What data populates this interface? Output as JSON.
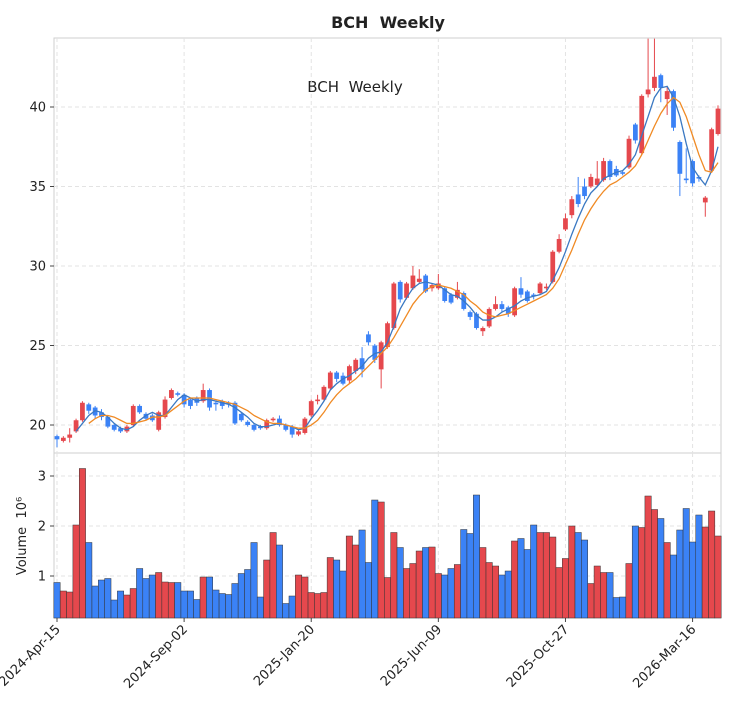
{
  "chart_data": {
    "type": "candlestick",
    "title": "BCH  Weekly",
    "annotation": "BCH  Weekly",
    "x": [
      "2024-Apr-15",
      "2024-Apr-22",
      "2024-Apr-29",
      "2024-May-06",
      "2024-May-13",
      "2024-May-20",
      "2024-May-27",
      "2024-Jun-03",
      "2024-Jun-10",
      "2024-Jun-17",
      "2024-Jun-24",
      "2024-Jul-01",
      "2024-Jul-08",
      "2024-Jul-15",
      "2024-Jul-22",
      "2024-Jul-29",
      "2024-Aug-05",
      "2024-Aug-12",
      "2024-Aug-19",
      "2024-Aug-26",
      "2024-Sep-02",
      "2024-Sep-09",
      "2024-Sep-16",
      "2024-Sep-23",
      "2024-Sep-30",
      "2024-Oct-07",
      "2024-Oct-14",
      "2024-Oct-21",
      "2024-Oct-28",
      "2024-Nov-04",
      "2024-Nov-11",
      "2024-Nov-18",
      "2024-Nov-25",
      "2024-Dec-02",
      "2024-Dec-09",
      "2024-Dec-16",
      "2024-Dec-23",
      "2024-Dec-30",
      "2025-Jan-06",
      "2025-Jan-13",
      "2025-Jan-20",
      "2025-Jan-27",
      "2025-Feb-03",
      "2025-Feb-10",
      "2025-Feb-17",
      "2025-Feb-24",
      "2025-Mar-03",
      "2025-Mar-10",
      "2025-Mar-17",
      "2025-Mar-24",
      "2025-Mar-31",
      "2025-Apr-07",
      "2025-Apr-14",
      "2025-Apr-21",
      "2025-Apr-28",
      "2025-May-05",
      "2025-May-12",
      "2025-May-19",
      "2025-May-26",
      "2025-Jun-02",
      "2025-Jun-09",
      "2025-Jun-16",
      "2025-Jun-23",
      "2025-Jun-30",
      "2025-Jul-07",
      "2025-Jul-14",
      "2025-Jul-21",
      "2025-Jul-28",
      "2025-Aug-04",
      "2025-Aug-11",
      "2025-Aug-18",
      "2025-Aug-25",
      "2025-Sep-01",
      "2025-Sep-08",
      "2025-Sep-15",
      "2025-Sep-22",
      "2025-Sep-29",
      "2025-Oct-06",
      "2025-Oct-13",
      "2025-Oct-20",
      "2025-Oct-27",
      "2025-Nov-03",
      "2025-Nov-10",
      "2025-Nov-17",
      "2025-Nov-24",
      "2025-Dec-01",
      "2025-Dec-08",
      "2025-Dec-15",
      "2025-Dec-22",
      "2025-Dec-29",
      "2026-Jan-05",
      "2026-Jan-12",
      "2026-Jan-19",
      "2026-Jan-26",
      "2026-Feb-02",
      "2026-Feb-09",
      "2026-Feb-16",
      "2026-Feb-23",
      "2026-Mar-02",
      "2026-Mar-09",
      "2026-Mar-16",
      "2026-Mar-23",
      "2026-Mar-30",
      "2026-Apr-06",
      "2026-Apr-13"
    ],
    "xticks": [
      "2024-Apr-15",
      "2024-Sep-02",
      "2025-Jan-20",
      "2025-Jun-09",
      "2025-Oct-27",
      "2026-Mar-16"
    ],
    "open": [
      19.3,
      19.0,
      19.2,
      19.6,
      20.3,
      21.3,
      21.1,
      20.8,
      20.5,
      20.0,
      19.8,
      19.6,
      20.0,
      21.2,
      20.7,
      20.6,
      19.7,
      20.5,
      21.7,
      22.0,
      21.9,
      21.6,
      21.7,
      21.5,
      22.2,
      21.4,
      21.5,
      21.4,
      21.4,
      20.7,
      20.2,
      20.0,
      19.9,
      19.8,
      20.3,
      20.4,
      20.0,
      19.9,
      19.4,
      19.5,
      20.6,
      21.5,
      21.6,
      22.3,
      23.3,
      23.1,
      22.8,
      23.4,
      24.2,
      25.7,
      25.0,
      23.5,
      24.9,
      26.1,
      29.0,
      28.0,
      28.6,
      29.0,
      29.4,
      28.6,
      28.6,
      28.6,
      28.2,
      28.0,
      28.3,
      27.1,
      27.0,
      25.9,
      26.2,
      27.3,
      27.6,
      27.4,
      26.9,
      28.6,
      28.4,
      28.2,
      28.3,
      28.6,
      29.0,
      30.9,
      32.3,
      33.2,
      34.5,
      35.0,
      35.0,
      35.1,
      35.4,
      36.6,
      36.1,
      35.9,
      36.2,
      38.9,
      37.1,
      40.8,
      41.2,
      42.0,
      40.5,
      41.0,
      37.8,
      35.5,
      36.6,
      35.6,
      34.0,
      36.0,
      38.3
    ],
    "high": [
      19.4,
      19.3,
      19.8,
      20.4,
      21.5,
      21.4,
      21.2,
      21.0,
      20.6,
      20.1,
      19.9,
      20.0,
      21.3,
      21.3,
      20.8,
      20.7,
      20.9,
      21.8,
      22.3,
      22.1,
      22.0,
      21.7,
      21.8,
      22.6,
      22.3,
      21.5,
      21.6,
      21.5,
      21.5,
      20.8,
      20.3,
      20.1,
      20.0,
      20.4,
      20.5,
      20.6,
      20.1,
      20.0,
      19.7,
      20.5,
      21.6,
      21.9,
      22.5,
      23.4,
      23.4,
      23.3,
      23.8,
      24.2,
      24.9,
      25.9,
      25.1,
      25.3,
      26.5,
      29.0,
      29.1,
      29.0,
      30.0,
      29.8,
      29.5,
      28.9,
      29.5,
      28.7,
      28.3,
      29.0,
      28.4,
      27.2,
      27.1,
      26.2,
      27.4,
      28.1,
      27.8,
      27.5,
      28.7,
      29.3,
      28.5,
      28.3,
      29.0,
      28.9,
      31.0,
      32.0,
      33.3,
      34.4,
      35.6,
      35.5,
      35.8,
      36.6,
      36.8,
      36.7,
      36.3,
      36.0,
      38.2,
      39.0,
      40.8,
      44.3,
      44.3,
      42.1,
      41.3,
      41.1,
      37.9,
      37.4,
      36.7,
      35.7,
      34.4,
      38.7,
      40.1
    ],
    "low": [
      18.6,
      18.9,
      18.9,
      19.5,
      20.2,
      20.7,
      20.4,
      20.3,
      19.8,
      19.6,
      19.5,
      19.5,
      19.9,
      20.7,
      20.3,
      20.2,
      19.6,
      20.4,
      21.6,
      21.8,
      21.1,
      21.0,
      21.2,
      21.4,
      20.9,
      20.9,
      21.0,
      21.1,
      20.0,
      20.2,
      19.9,
      19.6,
      19.7,
      19.7,
      20.2,
      19.9,
      19.6,
      19.2,
      19.3,
      19.4,
      20.5,
      21.3,
      21.5,
      22.2,
      22.7,
      22.5,
      22.6,
      23.2,
      23.0,
      25.0,
      23.9,
      22.3,
      24.8,
      26.0,
      27.7,
      27.9,
      28.5,
      28.9,
      28.3,
      28.4,
      28.5,
      27.7,
      27.6,
      27.9,
      27.2,
      26.6,
      26.0,
      25.6,
      26.1,
      27.2,
      27.1,
      26.8,
      26.8,
      28.0,
      27.7,
      27.9,
      28.2,
      28.5,
      28.9,
      30.8,
      32.2,
      33.0,
      33.7,
      34.2,
      34.9,
      35.0,
      35.3,
      35.4,
      35.6,
      35.7,
      36.1,
      37.7,
      37.0,
      40.6,
      41.0,
      40.3,
      39.5,
      38.5,
      34.4,
      35.2,
      35.0,
      35.3,
      33.1,
      35.9,
      38.2
    ],
    "close": [
      19.1,
      19.2,
      19.4,
      20.3,
      21.4,
      20.9,
      20.6,
      20.5,
      19.9,
      19.7,
      19.6,
      19.9,
      21.2,
      20.8,
      20.4,
      20.3,
      20.8,
      21.6,
      22.2,
      21.9,
      21.3,
      21.2,
      21.4,
      22.2,
      21.1,
      21.3,
      21.2,
      21.3,
      20.1,
      20.3,
      20.0,
      19.7,
      19.8,
      20.3,
      20.4,
      20.0,
      19.7,
      19.4,
      19.6,
      20.4,
      21.5,
      21.6,
      22.4,
      23.3,
      22.9,
      22.6,
      23.7,
      24.1,
      23.5,
      25.2,
      24.1,
      25.2,
      26.4,
      28.9,
      27.9,
      28.9,
      29.4,
      29.2,
      28.4,
      28.8,
      28.9,
      27.8,
      27.7,
      28.5,
      27.3,
      26.8,
      26.1,
      26.1,
      27.3,
      27.6,
      27.3,
      27.0,
      28.6,
      28.2,
      27.8,
      28.1,
      28.9,
      28.7,
      30.9,
      31.7,
      33.0,
      34.2,
      33.9,
      34.4,
      35.6,
      35.5,
      36.6,
      35.6,
      35.7,
      35.8,
      38.0,
      37.9,
      40.7,
      41.1,
      41.9,
      41.2,
      41.0,
      38.7,
      35.8,
      35.4,
      35.2,
      35.5,
      34.3,
      38.6,
      39.9
    ],
    "up_color": "#e5484d",
    "down_color": "#3b82f6",
    "ylim": [
      18.24,
      44.34
    ],
    "yticks": [
      20,
      25,
      30,
      35,
      40
    ],
    "grid": true,
    "ma": [
      {
        "color": "#3a78c2",
        "values": [
          null,
          null,
          null,
          19.6,
          20.1,
          20.6,
          20.9,
          20.8,
          20.5,
          20.1,
          19.8,
          19.7,
          19.9,
          20.3,
          20.6,
          20.8,
          20.6,
          20.6,
          21.1,
          21.6,
          21.9,
          21.7,
          21.5,
          21.6,
          21.6,
          21.5,
          21.4,
          21.3,
          21.1,
          20.8,
          20.5,
          20.1,
          19.9,
          19.9,
          20.0,
          20.1,
          20.0,
          19.9,
          19.7,
          19.8,
          20.4,
          20.9,
          21.5,
          22.2,
          22.6,
          22.9,
          23.1,
          23.4,
          23.7,
          24.2,
          24.5,
          24.6,
          25.2,
          26.2,
          27.3,
          28.0,
          28.6,
          28.9,
          29.0,
          28.9,
          28.8,
          28.5,
          28.2,
          28.1,
          27.8,
          27.4,
          26.9,
          26.6,
          26.6,
          26.8,
          27.1,
          27.3,
          27.5,
          27.8,
          28.0,
          28.1,
          28.2,
          28.4,
          29.1,
          29.9,
          30.9,
          32.0,
          33.0,
          33.9,
          34.6,
          35.0,
          35.5,
          35.7,
          35.9,
          36.0,
          36.4,
          37.0,
          38.2,
          39.4,
          40.6,
          41.2,
          41.3,
          40.6,
          39.4,
          37.7,
          36.2,
          35.6,
          35.1,
          36.0,
          37.5
        ]
      },
      {
        "color": "#f08a24",
        "values": [
          null,
          null,
          null,
          null,
          null,
          20.1,
          20.4,
          20.6,
          20.6,
          20.5,
          20.3,
          20.1,
          20.1,
          20.2,
          20.3,
          20.5,
          20.5,
          20.6,
          20.9,
          21.2,
          21.5,
          21.7,
          21.7,
          21.7,
          21.7,
          21.6,
          21.5,
          21.4,
          21.3,
          21.1,
          20.9,
          20.6,
          20.4,
          20.2,
          20.1,
          20.1,
          20.0,
          19.9,
          19.8,
          19.8,
          20.0,
          20.3,
          20.8,
          21.4,
          21.9,
          22.3,
          22.6,
          22.9,
          23.3,
          23.7,
          24.1,
          24.5,
          24.9,
          25.5,
          26.2,
          26.9,
          27.6,
          28.1,
          28.5,
          28.7,
          28.8,
          28.7,
          28.6,
          28.4,
          28.2,
          27.8,
          27.5,
          27.1,
          26.9,
          26.8,
          26.9,
          27.0,
          27.2,
          27.4,
          27.6,
          27.8,
          28.0,
          28.2,
          28.6,
          29.2,
          30.1,
          31.0,
          32.0,
          32.9,
          33.6,
          34.2,
          34.7,
          35.1,
          35.3,
          35.6,
          35.9,
          36.3,
          37.0,
          37.9,
          38.8,
          39.6,
          40.2,
          40.6,
          40.3,
          39.4,
          38.2,
          37.0,
          36.0,
          35.9,
          36.5
        ]
      }
    ],
    "volume": {
      "ylabel": "Volume  10⁶",
      "values": [
        0.87,
        0.7,
        0.68,
        2.02,
        3.15,
        1.67,
        0.8,
        0.92,
        0.95,
        0.52,
        0.7,
        0.62,
        0.75,
        1.15,
        0.95,
        1.02,
        1.07,
        0.88,
        0.87,
        0.87,
        0.7,
        0.7,
        0.53,
        0.98,
        0.98,
        0.72,
        0.65,
        0.63,
        0.85,
        1.05,
        1.13,
        1.67,
        0.58,
        1.32,
        1.87,
        1.62,
        0.45,
        0.6,
        1.02,
        0.98,
        0.67,
        0.65,
        0.67,
        1.37,
        1.32,
        1.1,
        1.8,
        1.62,
        1.92,
        1.27,
        2.52,
        2.48,
        0.97,
        1.87,
        1.57,
        1.15,
        1.25,
        1.5,
        1.57,
        1.58,
        1.05,
        1.02,
        1.15,
        1.23,
        1.93,
        1.85,
        2.62,
        1.57,
        1.27,
        1.2,
        1.02,
        1.1,
        1.7,
        1.75,
        1.53,
        2.02,
        1.87,
        1.87,
        1.78,
        1.17,
        1.35,
        2.0,
        1.87,
        1.72,
        0.85,
        1.2,
        1.07,
        1.07,
        0.57,
        0.58,
        1.25,
        2.0,
        1.97,
        2.6,
        2.33,
        2.15,
        1.67,
        1.42,
        1.92,
        2.35,
        1.68,
        2.22,
        1.98,
        2.3,
        1.8
      ],
      "ylim": [
        0.16,
        3.46
      ],
      "yticks": [
        1,
        2,
        3
      ]
    }
  }
}
